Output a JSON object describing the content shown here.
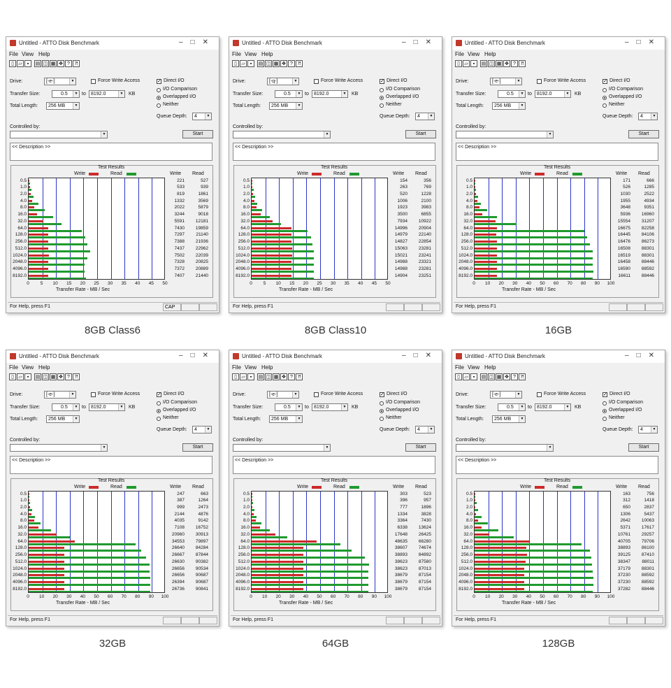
{
  "window": {
    "title": "Untitled - ATTO Disk Benchmark",
    "menu": [
      "File",
      "View",
      "Help"
    ],
    "status": "For Help, press F1"
  },
  "form": {
    "drive_label": "Drive:",
    "drive_value": "[-e-]",
    "drive_value_alt": "[-q-]",
    "transfer_label": "Transfer Size:",
    "transfer_from": "0.5",
    "to_label": "to",
    "transfer_to": "8192.0",
    "kb_label": "KB",
    "total_label": "Total Length:",
    "total_value": "256 MB",
    "force_write": "Force Write Access",
    "direct_io": "Direct I/O",
    "io_comparison": "I/O Comparison",
    "overlapped_io": "Overlapped I/O",
    "neither": "Neither",
    "queue_label": "Queue Depth:",
    "queue_value": "4",
    "controlled_label": "Controlled by:",
    "start": "Start",
    "description": "<< Description >>"
  },
  "results_labels": {
    "title": "Test Results",
    "write": "Write",
    "read": "Read",
    "xlabel": "Transfer Rate - MB / Sec",
    "y": [
      "0.5",
      "1.0",
      "2.0",
      "4.0",
      "8.0",
      "16.0",
      "32.0",
      "64.0",
      "128.0",
      "256.0",
      "512.0",
      "1024.0",
      "2048.0",
      "4096.0",
      "8192.0"
    ]
  },
  "colors": {
    "write": "#cc2a2a",
    "read": "#1f9a2f",
    "grid": "#2a35c8"
  },
  "chart_data": [
    {
      "type": "bar",
      "caption": "8GB Class6",
      "xlim": [
        0,
        50
      ],
      "xticks": [
        "0",
        "5",
        "10",
        "15",
        "20",
        "25",
        "30",
        "35",
        "40",
        "45",
        "50"
      ],
      "drive": "[-e-]",
      "status_cap": "CAP",
      "write": [
        221,
        533,
        819,
        1332,
        2022,
        3244,
        5591,
        7430,
        7297,
        7388,
        7437,
        7502,
        7328,
        7372,
        7407
      ],
      "read": [
        527,
        939,
        1861,
        3569,
        5879,
        9018,
        12181,
        19859,
        21140,
        21936,
        22962,
        22039,
        20825,
        20889,
        21440
      ]
    },
    {
      "type": "bar",
      "caption": "8GB Class10",
      "xlim": [
        0,
        50
      ],
      "xticks": [
        "0",
        "5",
        "10",
        "15",
        "20",
        "25",
        "30",
        "35",
        "40",
        "45",
        "50"
      ],
      "drive": "[-q-]",
      "status_cap": "",
      "write": [
        154,
        263,
        520,
        1006,
        1923,
        3500,
        7934,
        14996,
        14979,
        14827,
        15063,
        15021,
        14988,
        14988,
        14904
      ],
      "read": [
        356,
        769,
        1228,
        2100,
        3983,
        6855,
        10922,
        20904,
        22140,
        22854,
        23281,
        23241,
        23321,
        23281,
        23251
      ]
    },
    {
      "type": "bar",
      "caption": "16GB",
      "xlim": [
        0,
        100
      ],
      "xticks": [
        "0",
        "10",
        "20",
        "30",
        "40",
        "50",
        "60",
        "70",
        "80",
        "90",
        "100"
      ],
      "drive": "[-e-]",
      "status_cap": "",
      "write": [
        171,
        526,
        1030,
        1955,
        3648,
        5936,
        15554,
        16675,
        16445,
        16476,
        16508,
        16519,
        16458,
        16590,
        16611
      ],
      "read": [
        666,
        1285,
        2522,
        4934,
        9351,
        16960,
        31207,
        82258,
        84106,
        86273,
        88301,
        88301,
        88446,
        88592,
        88446
      ]
    },
    {
      "type": "bar",
      "caption": "32GB",
      "xlim": [
        0,
        100
      ],
      "xticks": [
        "0",
        "10",
        "20",
        "30",
        "40",
        "50",
        "60",
        "70",
        "80",
        "90",
        "100"
      ],
      "drive": "[-e-]",
      "status_cap": "",
      "write": [
        247,
        387,
        999,
        2144,
        4035,
        7108,
        20960,
        34553,
        26640,
        26667,
        26630,
        26656,
        26656,
        26394,
        26736
      ],
      "read": [
        663,
        1264,
        2473,
        4876,
        9142,
        16752,
        30913,
        79897,
        84284,
        87844,
        90382,
        90534,
        90687,
        90687,
        90841
      ]
    },
    {
      "type": "bar",
      "caption": "64GB",
      "xlim": [
        0,
        100
      ],
      "xticks": [
        "0",
        "10",
        "20",
        "30",
        "40",
        "50",
        "60",
        "70",
        "80",
        "90",
        "100"
      ],
      "drive": "[-e-]",
      "status_cap": "",
      "write": [
        303,
        396,
        777,
        1334,
        3364,
        6338,
        17648,
        48635,
        38607,
        38893,
        38623,
        38623,
        38679,
        38679,
        38679
      ],
      "read": [
        523,
        957,
        1896,
        3828,
        7430,
        13624,
        26425,
        66280,
        74674,
        84892,
        87580,
        87013,
        87154,
        87154,
        87154
      ]
    },
    {
      "type": "bar",
      "caption": "128GB",
      "xlim": [
        0,
        100
      ],
      "xticks": [
        "0",
        "10",
        "20",
        "30",
        "40",
        "50",
        "60",
        "70",
        "80",
        "90",
        "100"
      ],
      "drive": "[-e-]",
      "status_cap": "",
      "write": [
        163,
        312,
        650,
        1306,
        2642,
        5371,
        10761,
        40705,
        38893,
        39125,
        38347,
        37179,
        37230,
        37230,
        37282
      ],
      "read": [
        756,
        1418,
        2837,
        5437,
        10063,
        17617,
        29257,
        79706,
        86100,
        87410,
        88011,
        88301,
        88592,
        88592,
        88446
      ]
    }
  ]
}
